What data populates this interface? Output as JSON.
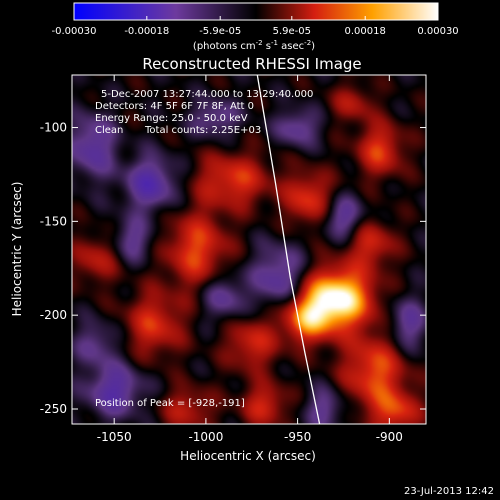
{
  "chart_data": {
    "type": "heatmap",
    "title": "Reconstructed RHESSI Image",
    "xlabel": "Heliocentric X (arcsec)",
    "ylabel": "Heliocentric Y (arcsec)",
    "xlim": [
      -1073,
      -880
    ],
    "ylim": [
      -258,
      -72
    ],
    "x_ticks": [
      -1050,
      -1000,
      -950,
      -900
    ],
    "x_tick_labels": [
      "-1050",
      "-1000",
      "-950",
      "-900"
    ],
    "y_ticks": [
      -100,
      -150,
      -200,
      -250
    ],
    "y_tick_labels": [
      "-100",
      "-150",
      "-200",
      "-250"
    ],
    "colorbar": {
      "range": [
        -0.0003,
        0.0003
      ],
      "ticks": [
        -0.0003,
        -0.00018,
        -5.9e-05,
        5.9e-05,
        0.00018,
        0.0003
      ],
      "tick_labels": [
        "-0.00030",
        "-0.00018",
        "-5.9e-05",
        "5.9e-05",
        "0.00018",
        "0.00030"
      ],
      "units_label": "(photons cm",
      "units_exp1": "-2",
      "units_mid1": " s",
      "units_exp2": "-1",
      "units_mid2": " asec",
      "units_exp3": "-2",
      "units_end": ")"
    },
    "peak": {
      "x": -928,
      "y": -191
    },
    "sources": [
      {
        "x": -928,
        "y": -191,
        "value": 0.0003,
        "sx": 13,
        "sy": 11
      },
      {
        "x": -945,
        "y": -202,
        "value": 0.00018,
        "sx": 10,
        "sy": 9
      },
      {
        "x": -908,
        "y": -230,
        "value": 0.00016,
        "sx": 12,
        "sy": 14
      },
      {
        "x": -896,
        "y": -252,
        "value": 0.00013,
        "sx": 9,
        "sy": 8
      },
      {
        "x": -944,
        "y": -138,
        "value": 0.00014,
        "sx": 9,
        "sy": 10
      },
      {
        "x": -905,
        "y": -112,
        "value": 0.00014,
        "sx": 9,
        "sy": 10
      },
      {
        "x": -910,
        "y": -162,
        "value": 0.00012,
        "sx": 9,
        "sy": 9
      },
      {
        "x": -985,
        "y": -128,
        "value": 0.00014,
        "sx": 14,
        "sy": 10
      },
      {
        "x": -1005,
        "y": -165,
        "value": 0.00015,
        "sx": 12,
        "sy": 14
      },
      {
        "x": -1028,
        "y": -205,
        "value": 0.00013,
        "sx": 11,
        "sy": 12
      },
      {
        "x": -1060,
        "y": -170,
        "value": 0.0001,
        "sx": 9,
        "sy": 9
      },
      {
        "x": -975,
        "y": -215,
        "value": 0.00012,
        "sx": 10,
        "sy": 10
      },
      {
        "x": -1010,
        "y": -250,
        "value": 0.0001,
        "sx": 10,
        "sy": 8
      },
      {
        "x": -968,
        "y": -248,
        "value": 0.00012,
        "sx": 9,
        "sy": 8
      },
      {
        "x": -1030,
        "y": -130,
        "value": -0.00015,
        "sx": 10,
        "sy": 10
      },
      {
        "x": -1062,
        "y": -110,
        "value": -0.00013,
        "sx": 9,
        "sy": 12
      },
      {
        "x": -1050,
        "y": -240,
        "value": -0.00014,
        "sx": 11,
        "sy": 10
      },
      {
        "x": -960,
        "y": -180,
        "value": -0.00013,
        "sx": 10,
        "sy": 12
      },
      {
        "x": -925,
        "y": -148,
        "value": -0.00012,
        "sx": 8,
        "sy": 8
      },
      {
        "x": -890,
        "y": -205,
        "value": -0.00011,
        "sx": 8,
        "sy": 10
      },
      {
        "x": -1040,
        "y": -160,
        "value": -0.0001,
        "sx": 8,
        "sy": 8
      },
      {
        "x": -990,
        "y": -190,
        "value": -0.00011,
        "sx": 8,
        "sy": 9
      },
      {
        "x": -995,
        "y": -95,
        "value": -0.0001,
        "sx": 9,
        "sy": 7
      },
      {
        "x": -935,
        "y": -250,
        "value": -0.0001,
        "sx": 8,
        "sy": 8
      },
      {
        "x": -950,
        "y": -100,
        "value": -0.00011,
        "sx": 8,
        "sy": 7
      },
      {
        "x": -1060,
        "y": -215,
        "value": -9e-05,
        "sx": 8,
        "sy": 8
      },
      {
        "x": -920,
        "y": -87,
        "value": 9e-05,
        "sx": 8,
        "sy": 7
      }
    ],
    "limb": [
      {
        "x": -972,
        "y": -72
      },
      {
        "x": -962,
        "y": -130
      },
      {
        "x": -954,
        "y": -180
      },
      {
        "x": -946,
        "y": -220
      },
      {
        "x": -938,
        "y": -258
      }
    ],
    "annotations": {
      "time_range": "5-Dec-2007 13:27:44.000 to 13:29:40.000",
      "detectors": "Detectors: 4F 5F 6F 7F 8F, Att 0",
      "energy": "Energy Range: 25.0 - 50.0 keV",
      "clean_label": "Clean",
      "counts": "Total counts: 2.25E+03",
      "peak_label": "Position of Peak = [-928,-191]"
    },
    "timestamp": "23-Jul-2013 12:42"
  }
}
